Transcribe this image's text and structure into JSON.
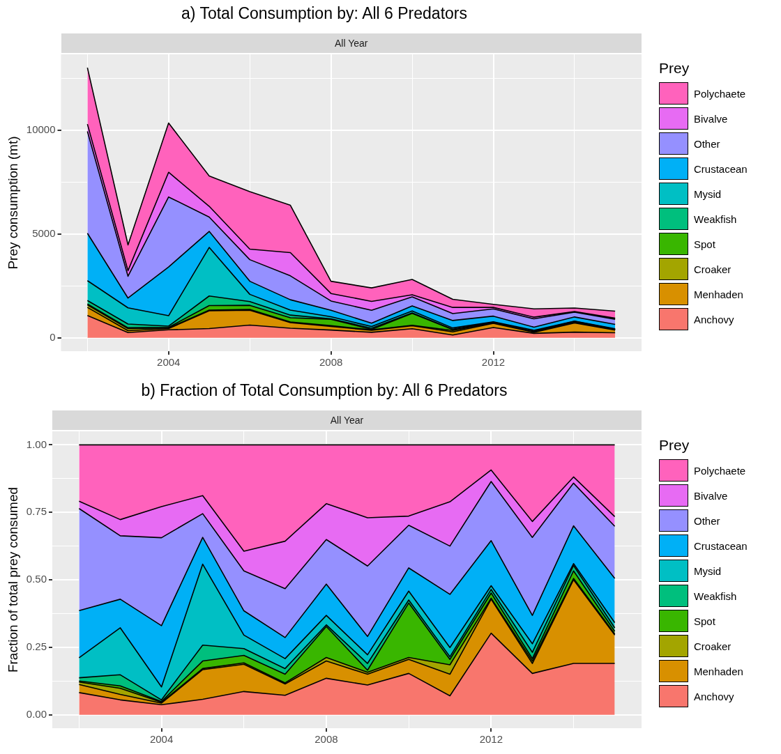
{
  "chart_data": [
    {
      "type": "area",
      "title": "a)  Total Consumption by: All 6 Predators",
      "subtitle": "All Year",
      "ylabel": "Prey consumption (mt)",
      "legend_title": "Prey",
      "stacked": true,
      "grid": true,
      "legend": "right",
      "x": [
        2002,
        2003,
        2004,
        2005,
        2006,
        2007,
        2008,
        2009,
        2010,
        2011,
        2012,
        2013,
        2014,
        2015
      ],
      "xlim": [
        2001.35,
        2015.65
      ],
      "xticks": [
        {
          "value": 2002,
          "label": null
        },
        2004,
        {
          "value": 2006,
          "label": null
        },
        2008,
        {
          "value": 2010,
          "label": null
        },
        2012,
        {
          "value": 2014,
          "label": null
        }
      ],
      "ylim": [
        -650,
        13650
      ],
      "yticks": [
        0,
        {
          "value": 2500,
          "label": null
        },
        5000,
        {
          "value": 7500,
          "label": null
        },
        10000,
        {
          "value": 12500,
          "label": null
        }
      ],
      "series": [
        {
          "name": "Anchovy",
          "color": "#f8766d",
          "values": [
            1070,
            250,
            380,
            440,
            610,
            460,
            370,
            260,
            430,
            130,
            490,
            210,
            270,
            240
          ]
        },
        {
          "name": "Menhaden",
          "color": "#d89000",
          "values": [
            390,
            90,
            60,
            860,
            710,
            270,
            170,
            100,
            150,
            150,
            200,
            50,
            440,
            130
          ]
        },
        {
          "name": "Croaker",
          "color": "#a3a500",
          "values": [
            120,
            100,
            30,
            30,
            40,
            30,
            40,
            20,
            20,
            70,
            10,
            10,
            10,
            10
          ]
        },
        {
          "name": "Spot",
          "color": "#39b600",
          "values": [
            50,
            40,
            30,
            220,
            200,
            200,
            310,
            20,
            570,
            40,
            30,
            10,
            40,
            10
          ]
        },
        {
          "name": "Weakfish",
          "color": "#00bf7d",
          "values": [
            160,
            180,
            60,
            460,
            180,
            130,
            20,
            60,
            30,
            20,
            20,
            30,
            30,
            20
          ]
        },
        {
          "name": "Mysid",
          "color": "#00bfc4",
          "values": [
            960,
            780,
            500,
            2340,
            350,
            240,
            100,
            80,
            90,
            60,
            20,
            50,
            10,
            20
          ]
        },
        {
          "name": "Crustacean",
          "color": "#00b0f6",
          "values": [
            2280,
            470,
            2350,
            770,
            630,
            500,
            310,
            160,
            240,
            360,
            270,
            150,
            200,
            210
          ]
        },
        {
          "name": "Other",
          "color": "#9590ff",
          "values": [
            4910,
            1050,
            3370,
            690,
            1040,
            1150,
            450,
            620,
            440,
            330,
            350,
            400,
            230,
            250
          ]
        },
        {
          "name": "Bivalve",
          "color": "#e76bf3",
          "values": [
            350,
            270,
            1190,
            520,
            510,
            1120,
            360,
            430,
            100,
            300,
            70,
            80,
            30,
            50
          ]
        },
        {
          "name": "Polychaete",
          "color": "#ff62bc",
          "values": [
            2720,
            1240,
            2370,
            1460,
            2770,
            2280,
            590,
            650,
            740,
            390,
            150,
            400,
            170,
            340
          ]
        }
      ]
    },
    {
      "type": "area",
      "title": "b)  Fraction of Total Consumption by: All 6 Predators",
      "subtitle": "All Year",
      "ylabel": "Fraction of total prey consumed",
      "legend_title": "Prey",
      "stacked": true,
      "grid": true,
      "legend": "right",
      "x": [
        2002,
        2003,
        2004,
        2005,
        2006,
        2007,
        2008,
        2009,
        2010,
        2011,
        2012,
        2013,
        2014,
        2015
      ],
      "xlim": [
        2001.35,
        2015.65
      ],
      "xticks": [
        {
          "value": 2002,
          "label": null
        },
        2004,
        {
          "value": 2006,
          "label": null
        },
        2008,
        {
          "value": 2010,
          "label": null
        },
        2012,
        {
          "value": 2014,
          "label": null
        }
      ],
      "ylim": [
        -0.05,
        1.05
      ],
      "yticks": [
        {
          "value": 0,
          "label": "0.00"
        },
        {
          "value": 0.125,
          "label": null
        },
        {
          "value": 0.25,
          "label": "0.25"
        },
        {
          "value": 0.375,
          "label": null
        },
        {
          "value": 0.5,
          "label": "0.50"
        },
        {
          "value": 0.625,
          "label": null
        },
        {
          "value": 0.75,
          "label": "0.75"
        },
        {
          "value": 0.875,
          "label": null
        },
        {
          "value": 1,
          "label": "1.00"
        }
      ],
      "series": [
        {
          "name": "Anchovy",
          "color": "#f8766d",
          "values": [
            0.082,
            0.055,
            0.037,
            0.057,
            0.086,
            0.072,
            0.135,
            0.11,
            0.153,
            0.07,
            0.302,
            0.153,
            0.19,
            0.19
          ]
        },
        {
          "name": "Menhaden",
          "color": "#d89000",
          "values": [
            0.03,
            0.02,
            0.006,
            0.11,
            0.101,
            0.042,
            0.064,
            0.04,
            0.052,
            0.08,
            0.126,
            0.037,
            0.31,
            0.105
          ]
        },
        {
          "name": "Croaker",
          "color": "#a3a500",
          "values": [
            0.009,
            0.023,
            0.003,
            0.004,
            0.005,
            0.004,
            0.013,
            0.007,
            0.007,
            0.035,
            0.004,
            0.009,
            0.005,
            0.004
          ]
        },
        {
          "name": "Spot",
          "color": "#39b600",
          "values": [
            0.004,
            0.009,
            0.003,
            0.028,
            0.028,
            0.032,
            0.115,
            0.008,
            0.202,
            0.02,
            0.019,
            0.009,
            0.028,
            0.01
          ]
        },
        {
          "name": "Weakfish",
          "color": "#00bf7d",
          "values": [
            0.012,
            0.041,
            0.006,
            0.059,
            0.025,
            0.021,
            0.006,
            0.025,
            0.011,
            0.01,
            0.013,
            0.023,
            0.02,
            0.013
          ]
        },
        {
          "name": "Mysid",
          "color": "#00bfc4",
          "values": [
            0.074,
            0.174,
            0.048,
            0.3,
            0.05,
            0.037,
            0.035,
            0.032,
            0.033,
            0.034,
            0.014,
            0.032,
            0.007,
            0.019
          ]
        },
        {
          "name": "Crustacean",
          "color": "#00b0f6",
          "values": [
            0.175,
            0.106,
            0.227,
            0.099,
            0.09,
            0.078,
            0.116,
            0.068,
            0.086,
            0.197,
            0.167,
            0.105,
            0.14,
            0.164
          ]
        },
        {
          "name": "Other",
          "color": "#9590ff",
          "values": [
            0.378,
            0.235,
            0.326,
            0.088,
            0.148,
            0.181,
            0.165,
            0.261,
            0.158,
            0.179,
            0.219,
            0.289,
            0.158,
            0.193
          ]
        },
        {
          "name": "Bivalve",
          "color": "#e76bf3",
          "values": [
            0.027,
            0.06,
            0.115,
            0.067,
            0.073,
            0.176,
            0.133,
            0.179,
            0.034,
            0.164,
            0.043,
            0.059,
            0.023,
            0.036
          ]
        },
        {
          "name": "Polychaete",
          "color": "#ff62bc",
          "values": [
            0.209,
            0.277,
            0.229,
            0.188,
            0.394,
            0.357,
            0.218,
            0.27,
            0.264,
            0.211,
            0.093,
            0.284,
            0.119,
            0.266
          ]
        }
      ]
    }
  ]
}
